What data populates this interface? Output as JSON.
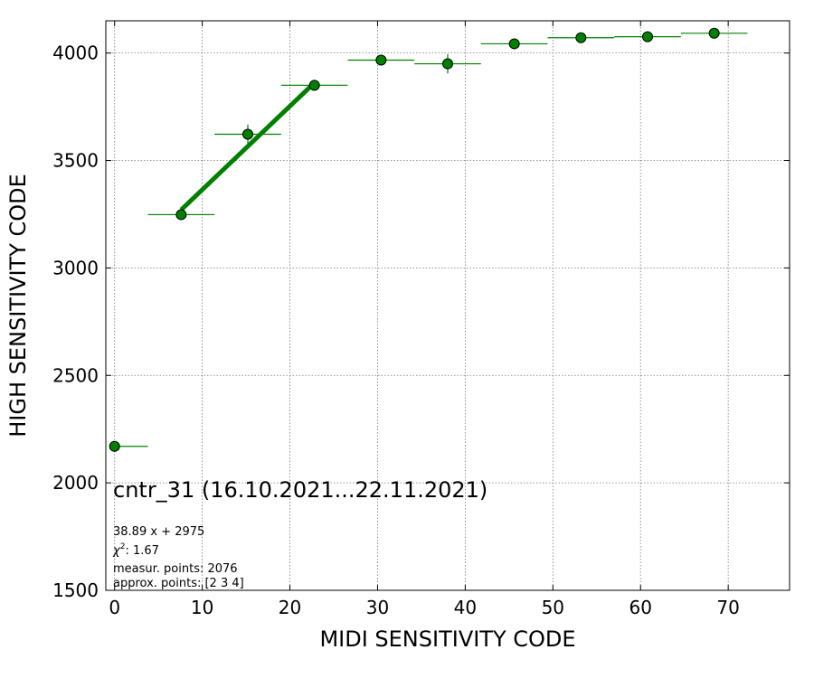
{
  "chart_data": {
    "type": "scatter",
    "title": "",
    "xlabel": "MIDI SENSITIVITY CODE",
    "ylabel": "HIGH SENSITIVITY CODE",
    "xlim": [
      -1,
      77
    ],
    "ylim": [
      1500,
      4150
    ],
    "x_ticks": [
      0,
      10,
      20,
      30,
      40,
      50,
      60,
      70
    ],
    "y_ticks": [
      1500,
      2000,
      2500,
      3000,
      3500,
      4000
    ],
    "grid": true,
    "marker_color": "#008000",
    "marker_edge_color": "#000000",
    "errorbar_color": "#008000",
    "fit_color": "#008000",
    "points": [
      {
        "x": 0.0,
        "y": 2170,
        "xerr_low": 0,
        "xerr_high": 3.8,
        "yerr": 0
      },
      {
        "x": 7.6,
        "y": 3248,
        "xerr_low": 3.8,
        "xerr_high": 3.8,
        "yerr": 20
      },
      {
        "x": 15.2,
        "y": 3622,
        "xerr_low": 3.8,
        "xerr_high": 3.8,
        "yerr": 45
      },
      {
        "x": 22.8,
        "y": 3850,
        "xerr_low": 3.8,
        "xerr_high": 3.8,
        "yerr": 25
      },
      {
        "x": 30.4,
        "y": 3967,
        "xerr_low": 3.8,
        "xerr_high": 3.8,
        "yerr": 25
      },
      {
        "x": 38.0,
        "y": 3950,
        "xerr_low": 3.8,
        "xerr_high": 3.8,
        "yerr": 45
      },
      {
        "x": 45.6,
        "y": 4043,
        "xerr_low": 3.8,
        "xerr_high": 3.8,
        "yerr": 15
      },
      {
        "x": 53.2,
        "y": 4071,
        "xerr_low": 3.8,
        "xerr_high": 3.8,
        "yerr": 12
      },
      {
        "x": 60.8,
        "y": 4076,
        "xerr_low": 3.8,
        "xerr_high": 3.8,
        "yerr": 12
      },
      {
        "x": 68.4,
        "y": 4092,
        "xerr_low": 3.8,
        "xerr_high": 3.8,
        "yerr": 12
      }
    ],
    "fit": {
      "slope": 38.89,
      "intercept": 2975,
      "x_range": [
        7.6,
        22.8
      ]
    },
    "annotations": {
      "title": "cntr_31 (16.10.2021...22.11.2021)",
      "equation": "38.89 x + 2975",
      "chi2_label": "χ",
      "chi2_power": "2",
      "chi2_value": ": 1.67",
      "measur_points": "measur. points: 2076",
      "approx_points": "approx. points: [2 3 4]"
    }
  }
}
